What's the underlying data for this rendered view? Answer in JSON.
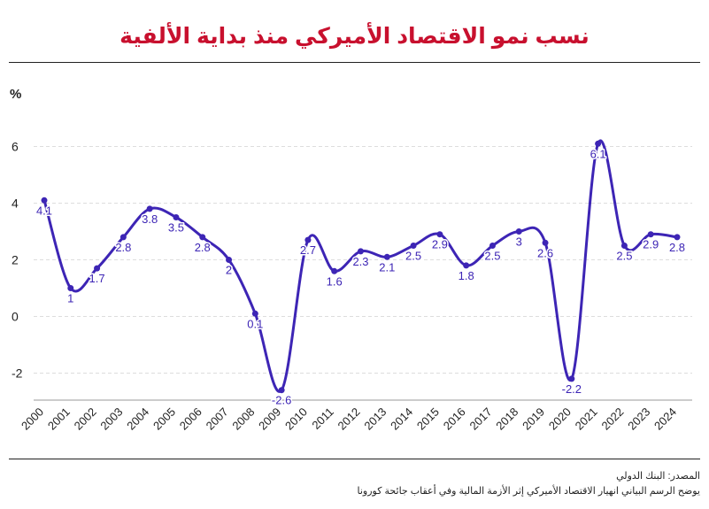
{
  "title": "نسب نمو الاقتصاد الأميركي منذ بداية الألفية",
  "source": "المصدر: البنك الدولي",
  "note": "يوضح الرسم البياني انهيار الاقتصاد الأميركي إثر الأزمة المالية وفي أعقاب جائحة كورونا",
  "colors": {
    "line": "#3d25b5",
    "title": "#c8102e",
    "grid": "#dddddd",
    "text": "#222222"
  },
  "chart_data": {
    "type": "line",
    "ylabel": "%",
    "ylim": [
      -3,
      7
    ],
    "yticks": [
      -2,
      0,
      2,
      4,
      6
    ],
    "grid": true,
    "x": [
      "2000",
      "2001",
      "2002",
      "2003",
      "2004",
      "2005",
      "2006",
      "2007",
      "2008",
      "2009",
      "2010",
      "2011",
      "2012",
      "2013",
      "2014",
      "2015",
      "2016",
      "2017",
      "2018",
      "2019",
      "2020",
      "2021",
      "2022",
      "2023",
      "2024"
    ],
    "series": [
      {
        "values": [
          4.1,
          1,
          1.7,
          2.8,
          3.8,
          3.5,
          2.8,
          2,
          0.1,
          -2.6,
          2.7,
          1.6,
          2.3,
          2.1,
          2.5,
          2.9,
          1.8,
          2.5,
          3,
          2.6,
          -2.2,
          6.1,
          2.5,
          2.9,
          2.8
        ],
        "labels": [
          "4.1",
          "1",
          "1.7",
          "2.8",
          "3.8",
          "3.5",
          "2.8",
          "2",
          "0.1",
          "-2.6",
          "2.7",
          "1.6",
          "2.3",
          "2.1",
          "2.5",
          "2.9",
          "1.8",
          "2.5",
          "3",
          "2.6",
          "-2.2",
          "6.1",
          "2.5",
          "2.9",
          "2.8"
        ]
      }
    ]
  }
}
